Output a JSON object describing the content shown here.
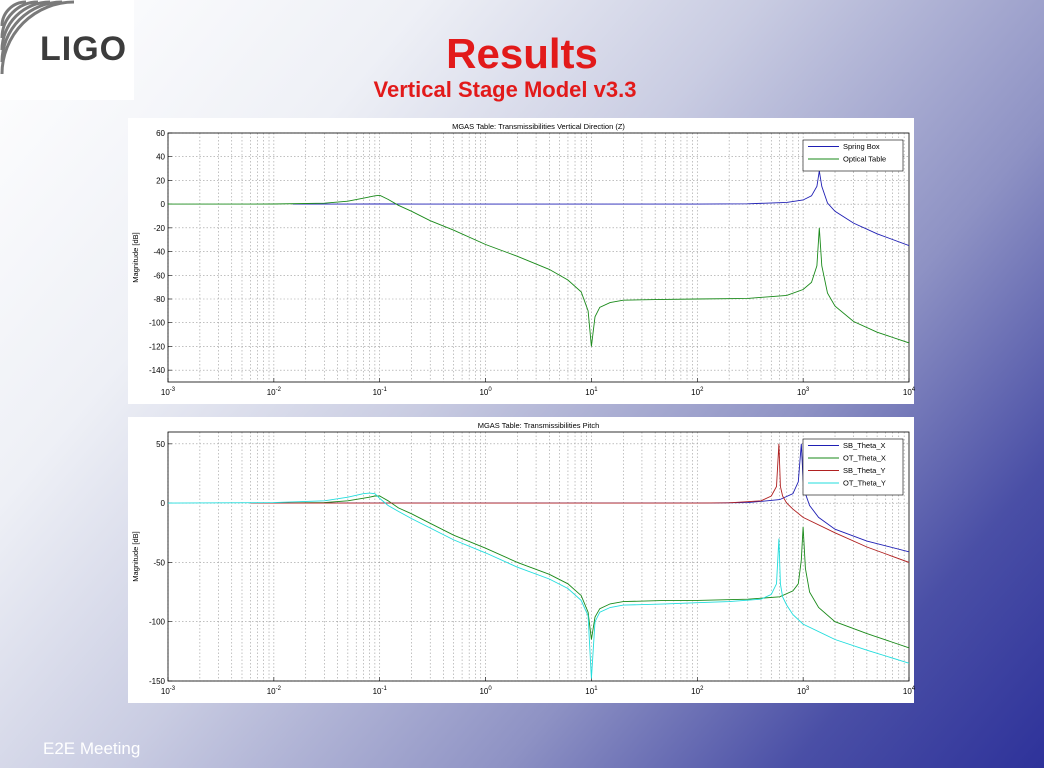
{
  "slide": {
    "logo_text": "LIGO",
    "title": "Results",
    "subtitle": "Vertical Stage Model v3.3",
    "footer": "E2E Meeting"
  },
  "chart_data": [
    {
      "type": "line",
      "title": "MGAS Table: Transmissibilities Vertical Direction (Z)",
      "xlabel": "",
      "ylabel": "Magnitude [dB]",
      "xscale": "log",
      "xlim": [
        0.001,
        10000
      ],
      "ylim": [
        -150,
        60
      ],
      "yticks": [
        60,
        40,
        20,
        0,
        -20,
        -40,
        -60,
        -80,
        -100,
        -120,
        -140
      ],
      "xticks": [
        0.001,
        0.01,
        0.1,
        1,
        10,
        100,
        1000,
        10000
      ],
      "grid": true,
      "legend_position": "top-right",
      "series": [
        {
          "name": "Spring Box",
          "color": "#1f1fb4",
          "x": [
            0.015,
            0.05,
            0.09,
            0.1,
            0.12,
            0.2,
            1,
            10,
            100,
            300,
            700,
            1000,
            1200,
            1350,
            1420,
            1500,
            1700,
            2000,
            3000,
            5000,
            10000
          ],
          "y": [
            0,
            0.05,
            0.1,
            0.1,
            0.1,
            0.05,
            0,
            0,
            0,
            0.3,
            1.5,
            3.5,
            7,
            15,
            28,
            15,
            1,
            -6,
            -16,
            -25,
            -35
          ]
        },
        {
          "name": "Optical Table",
          "color": "#1a8a1a",
          "x": [
            0.001,
            0.01,
            0.03,
            0.05,
            0.07,
            0.09,
            0.1,
            0.12,
            0.15,
            0.2,
            0.3,
            0.5,
            1,
            2,
            4,
            6,
            8,
            9.3,
            10,
            10.8,
            12,
            15,
            20,
            40,
            100,
            300,
            700,
            1000,
            1200,
            1350,
            1420,
            1500,
            1700,
            2000,
            3000,
            5000,
            10000
          ],
          "y": [
            0,
            0.1,
            0.8,
            2.5,
            5,
            7,
            7.5,
            4,
            -1,
            -6,
            -14,
            -22,
            -34,
            -44,
            -55,
            -64,
            -74,
            -90,
            -120,
            -95,
            -87,
            -83,
            -81,
            -80.5,
            -80,
            -79.5,
            -77,
            -72,
            -66,
            -52,
            -20,
            -52,
            -75,
            -86,
            -99,
            -108,
            -117
          ]
        }
      ]
    },
    {
      "type": "line",
      "title": "MGAS Table: Transmissibilities Pitch",
      "xlabel": "",
      "ylabel": "Magnitude [dB]",
      "xscale": "log",
      "xlim": [
        0.001,
        10000
      ],
      "ylim": [
        -150,
        60
      ],
      "yticks": [
        50,
        0,
        -50,
        -100,
        -150
      ],
      "xticks": [
        0.001,
        0.01,
        0.1,
        1,
        10,
        100,
        1000,
        10000
      ],
      "grid": true,
      "legend_position": "top-right",
      "series": [
        {
          "name": "SB_Theta_X",
          "color": "#1f1fb4",
          "x": [
            0.01,
            1,
            10,
            100,
            300,
            600,
            800,
            900,
            960,
            1000,
            1050,
            1150,
            1400,
            2000,
            4000,
            10000
          ],
          "y": [
            0,
            0,
            0,
            0,
            0.5,
            3,
            8,
            18,
            50,
            20,
            8,
            -2,
            -12,
            -22,
            -32,
            -41
          ]
        },
        {
          "name": "OT_Theta_X",
          "color": "#1a8a1a",
          "x": [
            0.01,
            0.03,
            0.05,
            0.08,
            0.09,
            0.1,
            0.12,
            0.15,
            0.2,
            0.3,
            0.5,
            1,
            2,
            4,
            6,
            8,
            9.3,
            10,
            10.8,
            12,
            15,
            20,
            50,
            100,
            300,
            600,
            800,
            900,
            960,
            1000,
            1050,
            1150,
            1400,
            2000,
            4000,
            10000
          ],
          "y": [
            0,
            0.5,
            2,
            5,
            6,
            6,
            2,
            -4,
            -9,
            -17,
            -27,
            -38,
            -50,
            -60,
            -68,
            -78,
            -92,
            -115,
            -96,
            -89,
            -85,
            -83,
            -82,
            -82,
            -81,
            -79,
            -74,
            -68,
            -48,
            -20,
            -55,
            -75,
            -88,
            -100,
            -110,
            -122
          ]
        },
        {
          "name": "SB_Theta_Y",
          "color": "#b02020",
          "x": [
            0.006,
            1,
            10,
            100,
            200,
            400,
            500,
            560,
            590,
            610,
            640,
            700,
            800,
            1000,
            2000,
            4000,
            10000
          ],
          "y": [
            0,
            0,
            0,
            0,
            0.3,
            2,
            6,
            14,
            50,
            14,
            6,
            0,
            -5,
            -12,
            -25,
            -37,
            -50
          ]
        },
        {
          "name": "OT_Theta_Y",
          "color": "#22dddd",
          "x": [
            0.001,
            0.01,
            0.03,
            0.05,
            0.07,
            0.08,
            0.09,
            0.1,
            0.12,
            0.15,
            0.2,
            0.3,
            0.5,
            1,
            2,
            4,
            6,
            8,
            9.3,
            10,
            10.8,
            12,
            15,
            20,
            50,
            100,
            200,
            400,
            500,
            560,
            590,
            610,
            640,
            700,
            800,
            1000,
            2000,
            4000,
            10000
          ],
          "y": [
            0,
            0.5,
            2,
            5,
            8,
            8.5,
            8,
            4,
            -2,
            -7,
            -13,
            -21,
            -31,
            -42,
            -54,
            -64,
            -72,
            -82,
            -95,
            -148,
            -100,
            -92,
            -88,
            -86,
            -85,
            -84,
            -83,
            -81,
            -77,
            -68,
            -30,
            -68,
            -79,
            -86,
            -94,
            -102,
            -115,
            -124,
            -135
          ]
        }
      ]
    }
  ]
}
